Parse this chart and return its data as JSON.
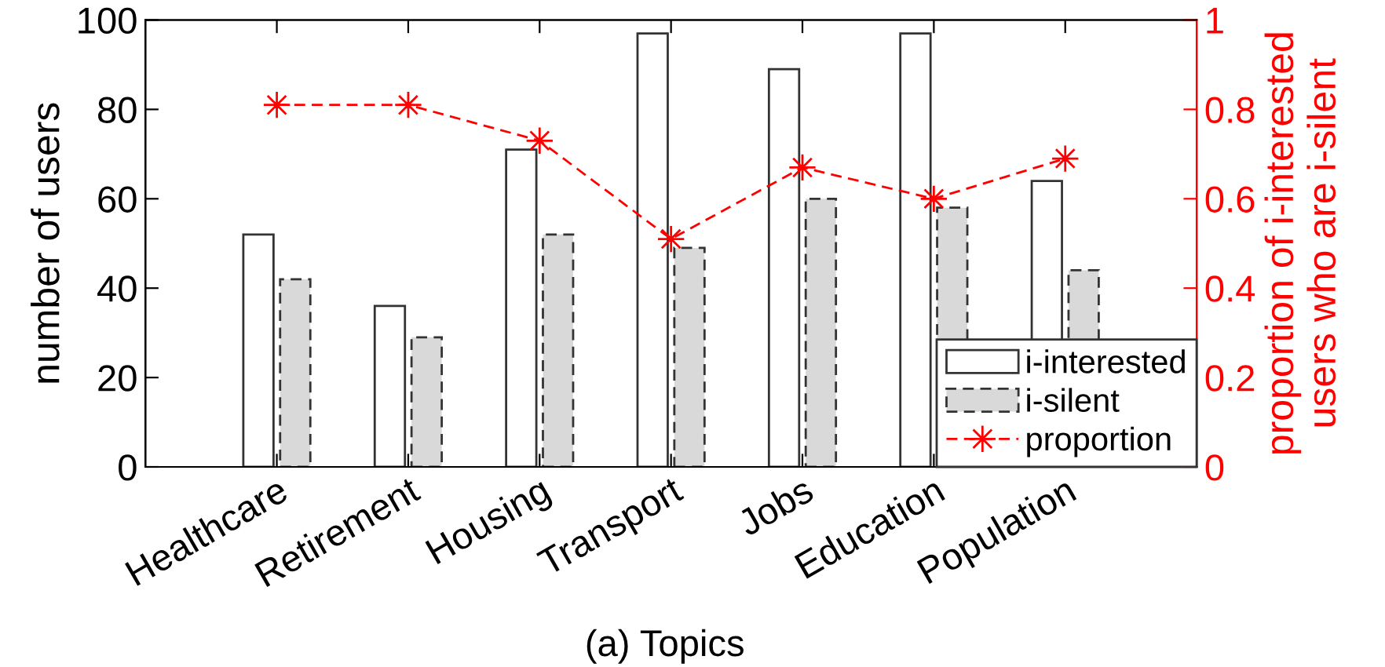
{
  "chart_data": {
    "type": "bar",
    "categories": [
      "Healthcare",
      "Retirement",
      "Housing",
      "Transport",
      "Jobs",
      "Education",
      "Population"
    ],
    "ylabel": "number of users",
    "y2label": "proportion of i-interested\nusers who are i-silent",
    "ylim": [
      0,
      100
    ],
    "yticks": [
      0,
      20,
      40,
      60,
      80,
      100
    ],
    "y2lim": [
      0,
      1
    ],
    "y2ticks": [
      0,
      0.2,
      0.4,
      0.6,
      0.8,
      1
    ],
    "series": [
      {
        "name": "i-interested",
        "color": "#ffffff",
        "line_style": "solid",
        "values": [
          52,
          36,
          71,
          97,
          89,
          97,
          64
        ]
      },
      {
        "name": "i-silent",
        "color": "#d9d9d9",
        "line_style": "dashed",
        "values": [
          42,
          29,
          52,
          49,
          60,
          58,
          44
        ]
      },
      {
        "name": "proportion",
        "type": "line",
        "axis": "y2",
        "color": "#ff0000",
        "line_style": "dashed",
        "marker": "star",
        "values": [
          0.81,
          0.81,
          0.73,
          0.51,
          0.67,
          0.6,
          0.69
        ]
      }
    ],
    "legend": "bottom right",
    "grid": false,
    "annotations": [
      "(a) Topics"
    ]
  }
}
